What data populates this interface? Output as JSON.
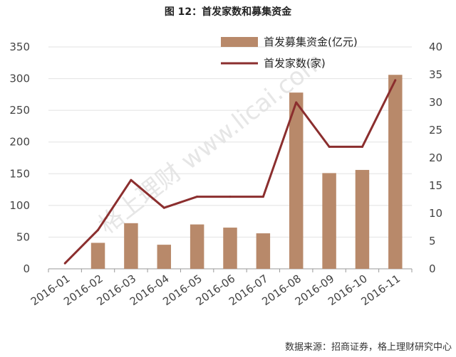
{
  "figure_title": "图 12：首发家数和募集资金",
  "source_note": "数据来源：招商证券，格上理财研究中心",
  "watermark": "格上理财 www.licai.com",
  "colors": {
    "bar": "#B8896A",
    "line": "#8B2E2E",
    "axis": "#aaaaaa"
  },
  "chart_data": {
    "type": "bar",
    "categories": [
      "2016-01",
      "2016-02",
      "2016-03",
      "2016-04",
      "2016-05",
      "2016-06",
      "2016-07",
      "2016-08",
      "2016-09",
      "2016-10",
      "2016-11"
    ],
    "series": [
      {
        "name": "首发募集资金(亿元)",
        "type": "bar",
        "axis": "left",
        "values": [
          0,
          41,
          72,
          38,
          70,
          65,
          56,
          278,
          151,
          156,
          306
        ]
      },
      {
        "name": "首发家数(家)",
        "type": "line",
        "axis": "right",
        "values": [
          1,
          7,
          16,
          11,
          13,
          13,
          13,
          30,
          22,
          22,
          34
        ]
      }
    ],
    "y_left": {
      "ylim": [
        0,
        350
      ],
      "ticks": [
        "0",
        "50",
        "100",
        "150",
        "200",
        "250",
        "300",
        "350"
      ]
    },
    "y_right": {
      "ylim": [
        0,
        40
      ],
      "ticks": [
        "0",
        "5",
        "10",
        "15",
        "20",
        "25",
        "30",
        "35",
        "40"
      ]
    },
    "grid": true,
    "legend": "top-right"
  }
}
